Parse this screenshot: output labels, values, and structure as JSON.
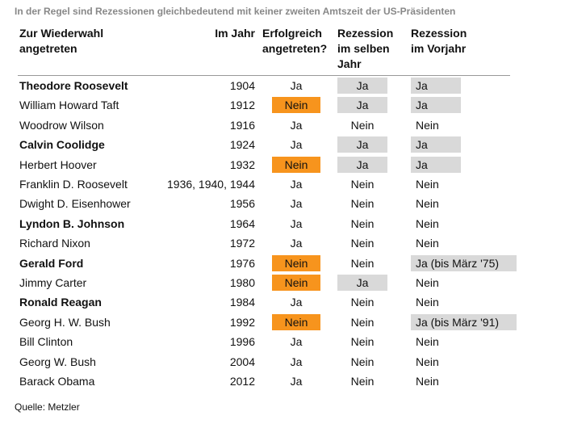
{
  "title": "In der Regel sind Rezessionen gleichbedeutend mit keiner zweiten Amtszeit der US-Präsidenten",
  "header": {
    "name": [
      "Zur Wiederwahl",
      "angetreten"
    ],
    "year": [
      "Im Jahr"
    ],
    "success": [
      "Erfolgreich",
      "angetreten?"
    ],
    "same_year": [
      "Rezession",
      "im selben",
      "Jahr"
    ],
    "prior_year": [
      "Rezession",
      "im Vorjahr"
    ]
  },
  "table": {
    "rows": [
      {
        "name": "Theodore Roosevelt",
        "bold": true,
        "year": "1904",
        "success": "Ja",
        "same_year": "Ja",
        "prior_year": "Ja",
        "highlight": [
          false,
          true,
          true
        ]
      },
      {
        "name": "William Howard Taft",
        "bold": false,
        "year": "1912",
        "success": "Nein",
        "same_year": "Ja",
        "prior_year": "Ja",
        "highlight": [
          true,
          true,
          true
        ]
      },
      {
        "name": "Woodrow Wilson",
        "bold": false,
        "year": "1916",
        "success": "Ja",
        "same_year": "Nein",
        "prior_year": "Nein",
        "highlight": [
          false,
          false,
          false
        ]
      },
      {
        "name": "Calvin Coolidge",
        "bold": true,
        "year": "1924",
        "success": "Ja",
        "same_year": "Ja",
        "prior_year": "Ja",
        "highlight": [
          false,
          true,
          true
        ]
      },
      {
        "name": "Herbert Hoover",
        "bold": false,
        "year": "1932",
        "success": "Nein",
        "same_year": "Ja",
        "prior_year": "Ja",
        "highlight": [
          true,
          true,
          true
        ]
      },
      {
        "name": "Franklin D. Roosevelt",
        "bold": false,
        "year": "1936, 1940, 1944",
        "success": "Ja",
        "same_year": "Nein",
        "prior_year": "Nein",
        "highlight": [
          false,
          false,
          false
        ]
      },
      {
        "name": "Dwight D. Eisenhower",
        "bold": false,
        "year": "1956",
        "success": "Ja",
        "same_year": "Nein",
        "prior_year": "Nein",
        "highlight": [
          false,
          false,
          false
        ]
      },
      {
        "name": "Lyndon B. Johnson",
        "bold": true,
        "year": "1964",
        "success": "Ja",
        "same_year": "Nein",
        "prior_year": "Nein",
        "highlight": [
          false,
          false,
          false
        ]
      },
      {
        "name": "Richard Nixon",
        "bold": false,
        "year": "1972",
        "success": "Ja",
        "same_year": "Nein",
        "prior_year": "Nein",
        "highlight": [
          false,
          false,
          false
        ]
      },
      {
        "name": "Gerald Ford",
        "bold": true,
        "year": "1976",
        "success": "Nein",
        "same_year": "Nein",
        "prior_year": "Ja (bis März '75)",
        "highlight": [
          true,
          false,
          true
        ]
      },
      {
        "name": "Jimmy Carter",
        "bold": false,
        "year": "1980",
        "success": "Nein",
        "same_year": "Ja",
        "prior_year": "Nein",
        "highlight": [
          true,
          true,
          false
        ]
      },
      {
        "name": "Ronald Reagan",
        "bold": true,
        "year": "1984",
        "success": "Ja",
        "same_year": "Nein",
        "prior_year": "Nein",
        "highlight": [
          false,
          false,
          false
        ]
      },
      {
        "name": "Georg H. W. Bush",
        "bold": false,
        "year": "1992",
        "success": "Nein",
        "same_year": "Nein",
        "prior_year": "Ja (bis März '91)",
        "highlight": [
          true,
          false,
          true
        ]
      },
      {
        "name": "Bill Clinton",
        "bold": false,
        "year": "1996",
        "success": "Ja",
        "same_year": "Nein",
        "prior_year": "Nein",
        "highlight": [
          false,
          false,
          false
        ]
      },
      {
        "name": "Georg W. Bush",
        "bold": false,
        "year": "2004",
        "success": "Ja",
        "same_year": "Nein",
        "prior_year": "Nein",
        "highlight": [
          false,
          false,
          false
        ]
      },
      {
        "name": "Barack Obama",
        "bold": false,
        "year": "2012",
        "success": "Ja",
        "same_year": "Nein",
        "prior_year": "Nein",
        "highlight": [
          false,
          false,
          false
        ]
      }
    ]
  },
  "source": "Quelle: Metzler"
}
